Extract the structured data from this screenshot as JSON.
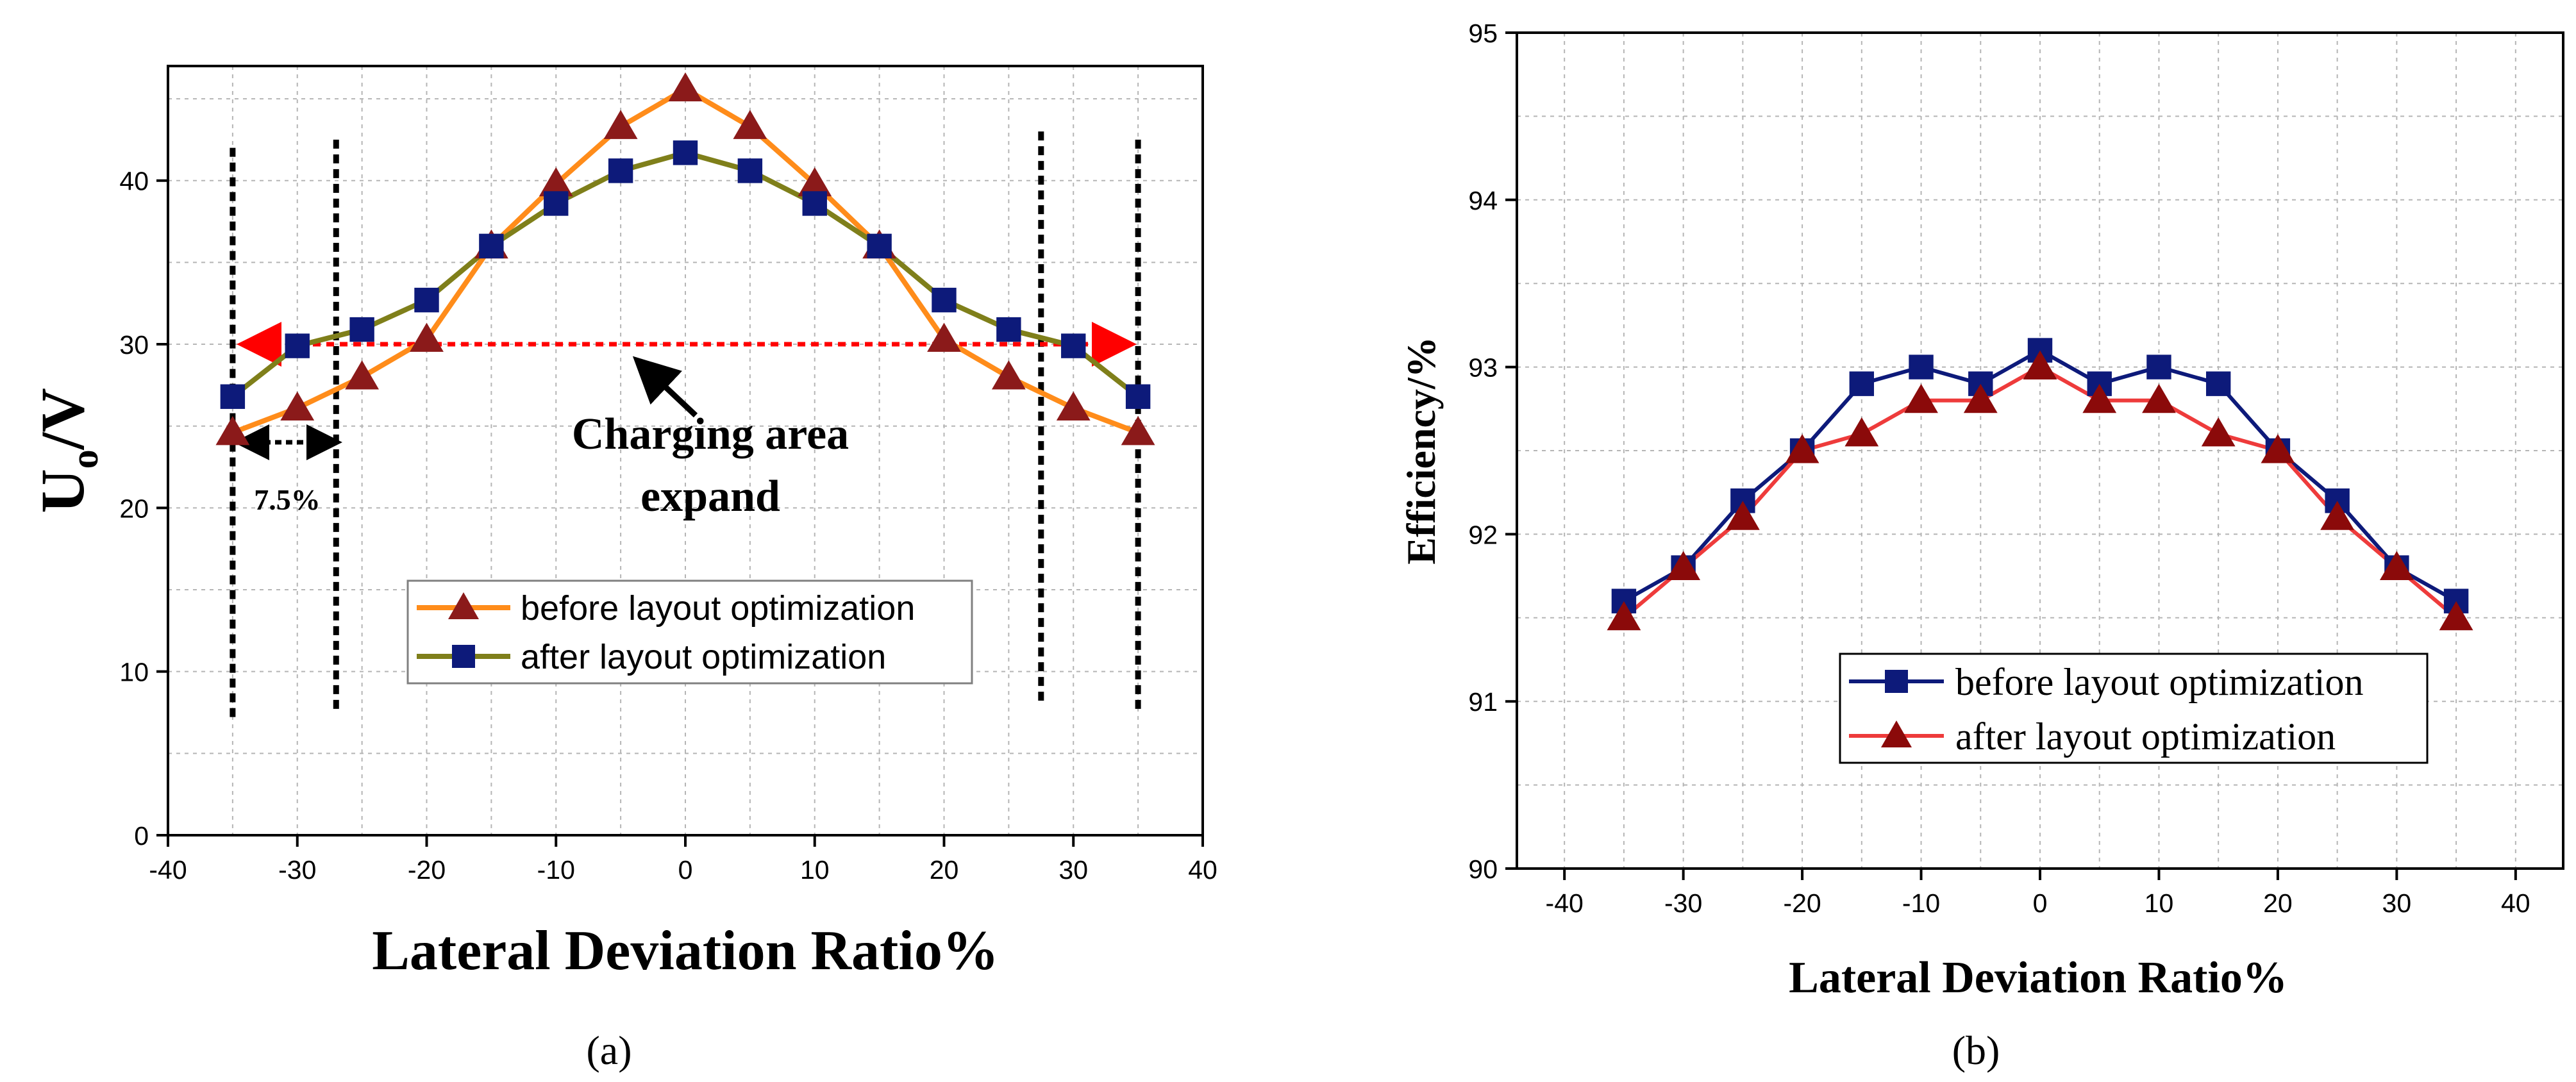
{
  "chart_data": [
    {
      "id": "a",
      "type": "line",
      "caption": "(a)",
      "xlabel": "Lateral Deviation Ratio%",
      "ylabel": "U",
      "ylabel_sub": "o",
      "ylabel_suffix": "/V",
      "xlim": [
        -40,
        40
      ],
      "ylim": [
        0,
        47
      ],
      "xticks": [
        -40,
        -30,
        -20,
        -10,
        0,
        10,
        20,
        30,
        40
      ],
      "yticks": [
        0,
        10,
        20,
        30,
        40
      ],
      "grid": true,
      "x": [
        -35,
        -30,
        -25,
        -20,
        -15,
        -10,
        -5,
        0,
        5,
        10,
        15,
        20,
        25,
        30,
        35
      ],
      "series": [
        {
          "name": "before layout optimization",
          "color": "#ff8c1a",
          "marker": "triangle",
          "marker_color": "#8b1a1a",
          "values": [
            24.6,
            26.1,
            28.0,
            30.3,
            36.0,
            39.8,
            43.3,
            45.6,
            43.3,
            39.8,
            36.0,
            30.3,
            28.0,
            26.1,
            24.6
          ]
        },
        {
          "name": "after layout optimization",
          "color": "#7f7f1a",
          "marker": "square",
          "marker_color": "#0d1a7a",
          "values": [
            26.8,
            29.9,
            30.9,
            32.7,
            36.0,
            38.6,
            40.6,
            41.7,
            40.6,
            38.6,
            36.0,
            32.7,
            30.9,
            29.9,
            26.8
          ]
        }
      ],
      "legend_position": "center-right",
      "annotations": {
        "arrow_text_line1": "Charging area",
        "arrow_text_line2": "expand",
        "range_label": "7.5%",
        "arrow_y": 30,
        "dashed_line_x": [
          -35,
          -27,
          27.5,
          35
        ]
      }
    },
    {
      "id": "b",
      "type": "line",
      "caption": "(b)",
      "xlabel": "Lateral Deviation Ratio%",
      "ylabel": "Efficiency/%",
      "xlim": [
        -44,
        44
      ],
      "ylim": [
        90,
        95
      ],
      "xticks": [
        -40,
        -30,
        -20,
        -10,
        0,
        10,
        20,
        30,
        40
      ],
      "yticks": [
        90,
        91,
        92,
        93,
        94,
        95
      ],
      "grid": true,
      "x": [
        -35,
        -30,
        -25,
        -20,
        -15,
        -10,
        -5,
        0,
        5,
        10,
        15,
        20,
        25,
        30,
        35
      ],
      "series": [
        {
          "name": "before layout optimization",
          "color": "#0d1a7a",
          "marker": "square",
          "marker_color": "#0d1a7a",
          "values": [
            91.6,
            91.8,
            92.2,
            92.5,
            92.9,
            93.0,
            92.9,
            93.1,
            92.9,
            93.0,
            92.9,
            92.5,
            92.2,
            91.8,
            91.6
          ]
        },
        {
          "name": "after layout optimization",
          "color": "#ee3b3b",
          "marker": "triangle",
          "marker_color": "#8b0a0a",
          "values": [
            91.5,
            91.8,
            92.1,
            92.5,
            92.6,
            92.8,
            92.8,
            93.0,
            92.8,
            92.8,
            92.6,
            92.5,
            92.1,
            91.8,
            91.5
          ]
        }
      ],
      "legend_position": "bottom-right"
    }
  ]
}
